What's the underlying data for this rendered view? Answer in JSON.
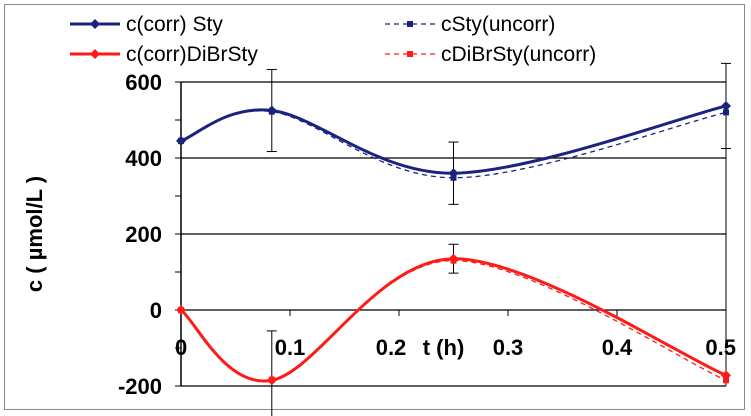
{
  "chart_data": {
    "type": "line",
    "xlabel": "t (h)",
    "ylabel": "c ( µmol/L )",
    "xlim": [
      0,
      0.5
    ],
    "ylim": [
      -200,
      600
    ],
    "x_ticks": [
      "0",
      "0.1",
      "0.2",
      "0.3",
      "0.4",
      "0.5"
    ],
    "y_ticks": [
      "600",
      "400",
      "200",
      "0",
      "-200"
    ],
    "grid": "horizontal",
    "legend_position": "top",
    "series": [
      {
        "name": "c(corr) Sty",
        "color": "#1a237e",
        "style": "solid",
        "marker": "diamond",
        "x": [
          0,
          0.0833,
          0.25,
          0.5
        ],
        "y": [
          445,
          525,
          360,
          537
        ],
        "error": [
          null,
          108,
          82,
          112
        ]
      },
      {
        "name": "cSty(uncorr)",
        "color": "#1a237e",
        "style": "dashed",
        "marker": "square",
        "x": [
          0,
          0.0833,
          0.25,
          0.5
        ],
        "y": [
          445,
          522,
          348,
          520
        ]
      },
      {
        "name": "c(corr)DiBrSty",
        "color": "#ff1a1a",
        "style": "solid",
        "marker": "diamond",
        "x": [
          0,
          0.0833,
          0.25,
          0.5
        ],
        "y": [
          0,
          -185,
          135,
          -172
        ],
        "error": [
          null,
          130,
          38,
          null
        ]
      },
      {
        "name": "cDiBrSty(uncorr)",
        "color": "#ff1a1a",
        "style": "dashed",
        "marker": "square",
        "x": [
          0,
          0.0833,
          0.25,
          0.5
        ],
        "y": [
          0,
          -183,
          130,
          -185
        ]
      }
    ]
  }
}
